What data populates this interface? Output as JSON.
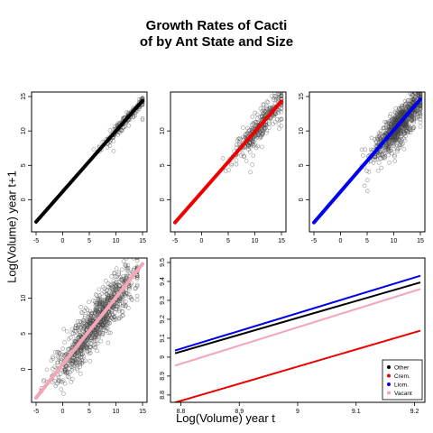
{
  "page": {
    "title_line1": "Growth Rates of Cacti",
    "title_line2": "of by Ant State and Size",
    "ylabel": "Log(Volume) year t+1",
    "xlabel": "Log(Volume) year t"
  },
  "chart_data": [
    {
      "type": "scatter",
      "panel": "Other",
      "line_color": "#000000",
      "xlim": [
        -5,
        15
      ],
      "ylim": [
        -4,
        15
      ],
      "xticks": [
        -5,
        0,
        5,
        10,
        15
      ],
      "yticks": [
        0,
        5,
        10,
        15
      ],
      "fit_line": {
        "x": [
          -5,
          15
        ],
        "y": [
          -3.2,
          14.4
        ]
      },
      "cloud": {
        "x_range": [
          5,
          15
        ],
        "spread": 0.5,
        "n": 180
      },
      "grid": false
    },
    {
      "type": "scatter",
      "panel": "Crem.",
      "line_color": "#ee0000",
      "xlim": [
        -5,
        15
      ],
      "ylim": [
        -4,
        15
      ],
      "xticks": [
        -5,
        0,
        5,
        10,
        15
      ],
      "yticks": [
        0,
        5,
        10
      ],
      "fit_line": {
        "x": [
          -5,
          15
        ],
        "y": [
          -3.3,
          14.3
        ]
      },
      "cloud": {
        "x_range": [
          4,
          15
        ],
        "spread": 1.0,
        "n": 350
      },
      "grid": false
    },
    {
      "type": "scatter",
      "panel": "Liom.",
      "line_color": "#0000ee",
      "xlim": [
        -5,
        15
      ],
      "ylim": [
        -4,
        15
      ],
      "xticks": [
        -5,
        0,
        5,
        10,
        15
      ],
      "yticks": [
        0,
        5,
        10,
        15
      ],
      "fit_line": {
        "x": [
          -5,
          15
        ],
        "y": [
          -3.3,
          14.6
        ]
      },
      "cloud": {
        "x_range": [
          4,
          15
        ],
        "spread": 1.2,
        "n": 900
      },
      "grid": false
    },
    {
      "type": "scatter",
      "panel": "Vacant",
      "line_color": "#f4a6b8",
      "xlim": [
        -5,
        15
      ],
      "ylim": [
        -4,
        15
      ],
      "xticks": [
        -5,
        0,
        5,
        10,
        15
      ],
      "yticks": [
        0,
        5,
        10
      ],
      "fit_line": {
        "x": [
          -5,
          15
        ],
        "y": [
          -4.0,
          14.8
        ]
      },
      "cloud": {
        "x_range": [
          -4,
          14
        ],
        "spread": 1.6,
        "n": 1000
      },
      "grid": false
    },
    {
      "type": "line",
      "panel": "Fitted lines",
      "xlim": [
        8.79,
        9.21
      ],
      "ylim": [
        8.785,
        9.5
      ],
      "xticks": [
        8.8,
        8.9,
        9.0,
        9.1,
        9.2
      ],
      "yticks": [
        8.8,
        8.9,
        9.0,
        9.1,
        9.2,
        9.3,
        9.4,
        9.5
      ],
      "series": [
        {
          "name": "Other",
          "color": "#000000",
          "x": [
            8.79,
            9.21
          ],
          "y": [
            9.02,
            9.395
          ]
        },
        {
          "name": "Crem.",
          "color": "#ee0000",
          "x": [
            8.79,
            9.21
          ],
          "y": [
            8.76,
            9.14
          ]
        },
        {
          "name": "Liom.",
          "color": "#0000ee",
          "x": [
            8.79,
            9.21
          ],
          "y": [
            9.035,
            9.43
          ]
        },
        {
          "name": "Vacant",
          "color": "#f4a6b8",
          "x": [
            8.79,
            9.21
          ],
          "y": [
            8.955,
            9.36
          ]
        }
      ],
      "legend": "bottom-right",
      "grid": false
    }
  ]
}
